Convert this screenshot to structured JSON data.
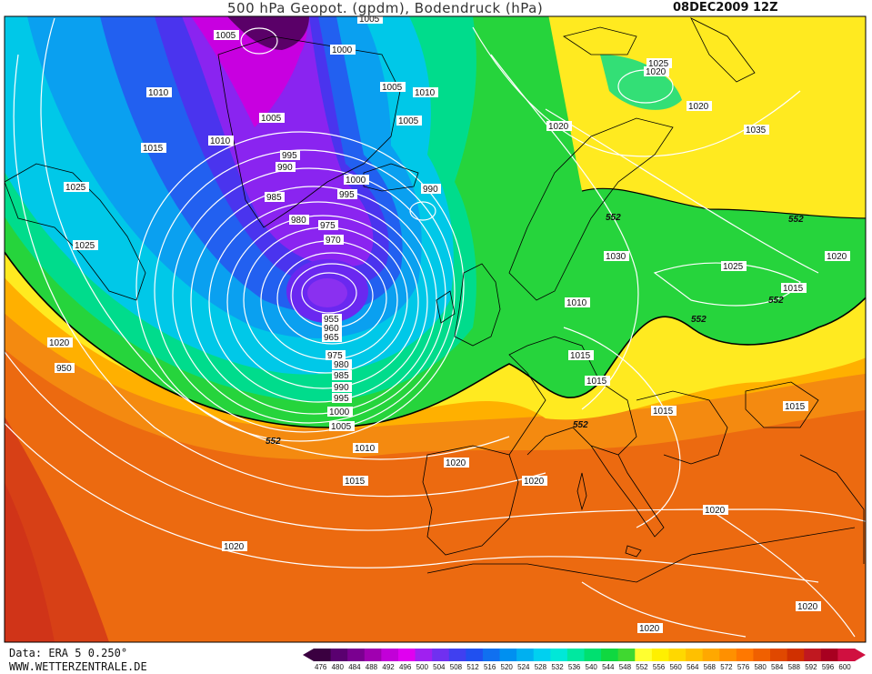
{
  "header": {
    "title": "500 hPa Geopot. (gpdm), Bodendruck (hPa)",
    "date": "08DEC2009 12Z"
  },
  "footer": {
    "data_source": "Data: ERA 5 0.250°",
    "website": "WWW.WETTERZENTRALE.DE"
  },
  "legend": {
    "values": [
      "476",
      "480",
      "484",
      "488",
      "492",
      "496",
      "500",
      "504",
      "508",
      "512",
      "516",
      "520",
      "524",
      "528",
      "532",
      "536",
      "540",
      "544",
      "548",
      "552",
      "556",
      "560",
      "564",
      "568",
      "572",
      "576",
      "580",
      "584",
      "588",
      "592",
      "596",
      "600"
    ],
    "colors": [
      "#3a0040",
      "#5a0070",
      "#7a0090",
      "#a000b0",
      "#c200d8",
      "#e000f0",
      "#a020f0",
      "#7030f0",
      "#4040f0",
      "#2050f0",
      "#1070f0",
      "#0090f0",
      "#00b0f0",
      "#00d0f0",
      "#00e8d8",
      "#00e8a0",
      "#00e070",
      "#10d840",
      "#40d830",
      "#ffff30",
      "#fff000",
      "#ffd800",
      "#ffc000",
      "#ffa800",
      "#ff9000",
      "#ff7800",
      "#f06000",
      "#e04800",
      "#d03000",
      "#c01820",
      "#a80020",
      "#d01040"
    ]
  },
  "isobar_labels": [
    {
      "text": "1005"
    },
    {
      "text": "1005"
    },
    {
      "text": "1000"
    },
    {
      "text": "1010"
    },
    {
      "text": "1005"
    },
    {
      "text": "1010"
    },
    {
      "text": "1015"
    },
    {
      "text": "1010"
    },
    {
      "text": "1005"
    },
    {
      "text": "1005"
    },
    {
      "text": "995"
    },
    {
      "text": "990"
    },
    {
      "text": "1000"
    },
    {
      "text": "995"
    },
    {
      "text": "990"
    },
    {
      "text": "985"
    },
    {
      "text": "980"
    },
    {
      "text": "975"
    },
    {
      "text": "970"
    },
    {
      "text": "1025"
    },
    {
      "text": "1020"
    },
    {
      "text": "1025"
    },
    {
      "text": "1020"
    },
    {
      "text": "1025"
    },
    {
      "text": "1035"
    },
    {
      "text": "1020"
    },
    {
      "text": "1030"
    },
    {
      "text": "1025"
    },
    {
      "text": "1020"
    },
    {
      "text": "1015"
    },
    {
      "text": "1010"
    },
    {
      "text": "1015"
    },
    {
      "text": "1015"
    },
    {
      "text": "1015"
    },
    {
      "text": "1015"
    },
    {
      "text": "1020"
    },
    {
      "text": "950"
    },
    {
      "text": "955"
    },
    {
      "text": "960"
    },
    {
      "text": "965"
    },
    {
      "text": "975"
    },
    {
      "text": "980"
    },
    {
      "text": "985"
    },
    {
      "text": "990"
    },
    {
      "text": "995"
    },
    {
      "text": "1000"
    },
    {
      "text": "1005"
    },
    {
      "text": "1010"
    },
    {
      "text": "1015"
    },
    {
      "text": "1020"
    },
    {
      "text": "1020"
    },
    {
      "text": "1020"
    },
    {
      "text": "1020"
    },
    {
      "text": "1020"
    },
    {
      "text": "1020"
    }
  ],
  "geopotential_labels": [
    {
      "text": "552"
    },
    {
      "text": "552"
    },
    {
      "text": "552"
    },
    {
      "text": "552"
    },
    {
      "text": "552"
    },
    {
      "text": "552"
    }
  ]
}
